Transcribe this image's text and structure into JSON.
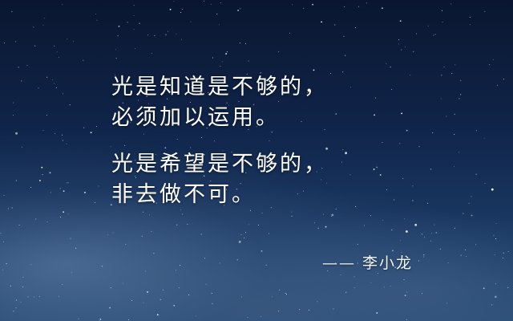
{
  "quote": {
    "line1": "光是知道是不够的，",
    "line2": "必须加以运用。",
    "line3": "光是希望是不够的，",
    "line4": "非去做不可。"
  },
  "attribution": "—— 李小龙",
  "colors": {
    "sky_top": "#0a1630",
    "sky_bottom": "#264a73",
    "text": "#ffffff"
  }
}
